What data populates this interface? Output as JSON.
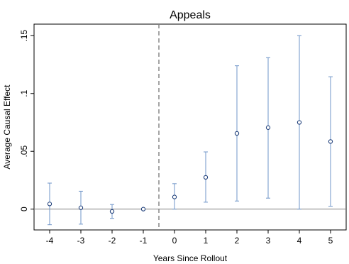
{
  "chart_data": {
    "type": "scatter",
    "title": "Appeals",
    "xlabel": "Years Since Rollout",
    "ylabel": "Average Causal Effect",
    "x_ticks": [
      "-4",
      "-3",
      "-2",
      "-1",
      "0",
      "1",
      "2",
      "3",
      "4",
      "5"
    ],
    "y_ticks": [
      "0",
      ".05",
      ".1",
      ".15"
    ],
    "xlim": [
      -4.5,
      5.5
    ],
    "ylim": [
      -0.018,
      0.16
    ],
    "grid": false,
    "reference_line_y": 0,
    "event_line_x": -0.5,
    "points": [
      {
        "x": -4,
        "y": 0.0045,
        "lo": -0.0135,
        "hi": 0.0225
      },
      {
        "x": -3,
        "y": 0.0012,
        "lo": -0.013,
        "hi": 0.0155
      },
      {
        "x": -2,
        "y": -0.002,
        "lo": -0.008,
        "hi": 0.004
      },
      {
        "x": -1,
        "y": 0.0,
        "lo": 0.0,
        "hi": 0.0
      },
      {
        "x": 0,
        "y": 0.0105,
        "lo": 0.0,
        "hi": 0.022
      },
      {
        "x": 1,
        "y": 0.0275,
        "lo": 0.006,
        "hi": 0.0495
      },
      {
        "x": 2,
        "y": 0.0655,
        "lo": 0.007,
        "hi": 0.124
      },
      {
        "x": 3,
        "y": 0.0705,
        "lo": 0.0095,
        "hi": 0.131
      },
      {
        "x": 4,
        "y": 0.075,
        "lo": 0.0,
        "hi": 0.15
      },
      {
        "x": 5,
        "y": 0.0585,
        "lo": 0.0025,
        "hi": 0.1145
      }
    ],
    "colors": {
      "marker": "#1f3f7a",
      "errorbar": "#6f95c8",
      "axis": "#000000",
      "dashed": "#7f7f7f",
      "zero_line": "#7f7f7f"
    }
  }
}
